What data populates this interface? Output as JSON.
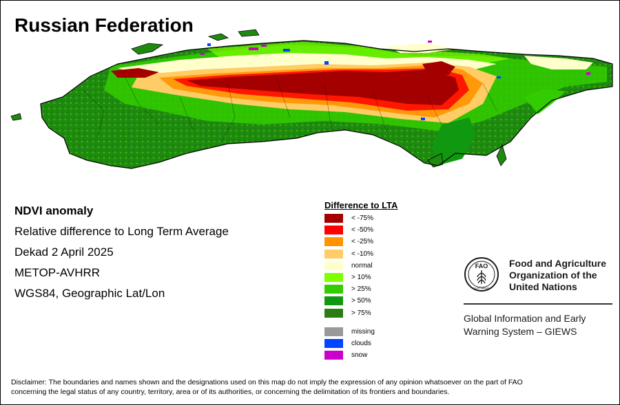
{
  "title": "Russian Federation",
  "meta": {
    "product": "NDVI anomaly",
    "description": "Relative difference to Long Term Average",
    "period": "Dekad 2 April 2025",
    "sensor": "METOP-AVHRR",
    "projection": "WGS84, Geographic Lat/Lon"
  },
  "legend": {
    "title": "Difference to LTA",
    "classes": [
      {
        "label": "< -75%",
        "color": "#a50000"
      },
      {
        "label": "< -50%",
        "color": "#ff0000"
      },
      {
        "label": "< -25%",
        "color": "#ff9400"
      },
      {
        "label": "< -10%",
        "color": "#ffcc66"
      },
      {
        "label": "normal",
        "color": "#ffffcc"
      },
      {
        "label": "> 10%",
        "color": "#7fff00"
      },
      {
        "label": "> 25%",
        "color": "#33cc00"
      },
      {
        "label": "> 50%",
        "color": "#109910"
      },
      {
        "label": "> 75%",
        "color": "#2a7d12"
      }
    ],
    "other": [
      {
        "label": "missing",
        "color": "#999999"
      },
      {
        "label": "clouds",
        "color": "#0044ff"
      },
      {
        "label": "snow",
        "color": "#cc00cc"
      }
    ]
  },
  "org": {
    "name_line1": "Food and Agriculture",
    "name_line2": "Organization of the",
    "name_line3": "United Nations",
    "logo_text": "FAO",
    "logo_motto": "FIAT PANIS",
    "system_line1": "Global Information and Early",
    "system_line2": "Warning System – GIEWS"
  },
  "disclaimer_line1": "Disclaimer: The boundaries and names shown and the designations used on this map do not imply the expression of any opinion whatsoever on the part of FAO",
  "disclaimer_line2": "concerning the legal status of any country, territory, area or of its authorities, or concerning the delimitation of its frontiers and boundaries."
}
